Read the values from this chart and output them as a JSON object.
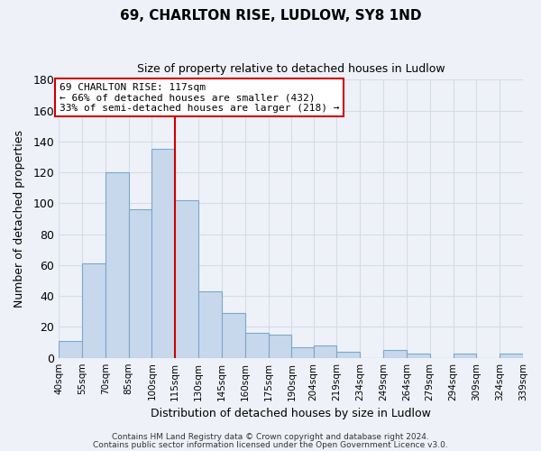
{
  "title": "69, CHARLTON RISE, LUDLOW, SY8 1ND",
  "subtitle": "Size of property relative to detached houses in Ludlow",
  "xlabel": "Distribution of detached houses by size in Ludlow",
  "ylabel": "Number of detached properties",
  "bar_left_edges": [
    40,
    55,
    70,
    85,
    100,
    115,
    130,
    145,
    160,
    175,
    190,
    204,
    219,
    234,
    249,
    264,
    279,
    294,
    309,
    324
  ],
  "bar_widths": [
    15,
    15,
    15,
    15,
    15,
    15,
    15,
    15,
    15,
    15,
    14,
    15,
    15,
    15,
    15,
    15,
    15,
    15,
    15,
    15
  ],
  "bar_heights": [
    11,
    61,
    120,
    96,
    135,
    102,
    43,
    29,
    16,
    15,
    7,
    8,
    4,
    0,
    5,
    3,
    0,
    3,
    0,
    3
  ],
  "bar_color": "#c8d8ec",
  "bar_edge_color": "#7ba7cc",
  "x_tick_labels": [
    "40sqm",
    "55sqm",
    "70sqm",
    "85sqm",
    "100sqm",
    "115sqm",
    "130sqm",
    "145sqm",
    "160sqm",
    "175sqm",
    "190sqm",
    "204sqm",
    "219sqm",
    "234sqm",
    "249sqm",
    "264sqm",
    "279sqm",
    "294sqm",
    "309sqm",
    "324sqm",
    "339sqm"
  ],
  "ylim": [
    0,
    180
  ],
  "yticks": [
    0,
    20,
    40,
    60,
    80,
    100,
    120,
    140,
    160,
    180
  ],
  "vline_x": 115,
  "vline_color": "#cc0000",
  "annotation_text": "69 CHARLTON RISE: 117sqm\n← 66% of detached houses are smaller (432)\n33% of semi-detached houses are larger (218) →",
  "annotation_box_color": "#ffffff",
  "annotation_box_edge": "#cc0000",
  "footnote1": "Contains HM Land Registry data © Crown copyright and database right 2024.",
  "footnote2": "Contains public sector information licensed under the Open Government Licence v3.0.",
  "background_color": "#eef2f8",
  "grid_color": "#d4dce8"
}
